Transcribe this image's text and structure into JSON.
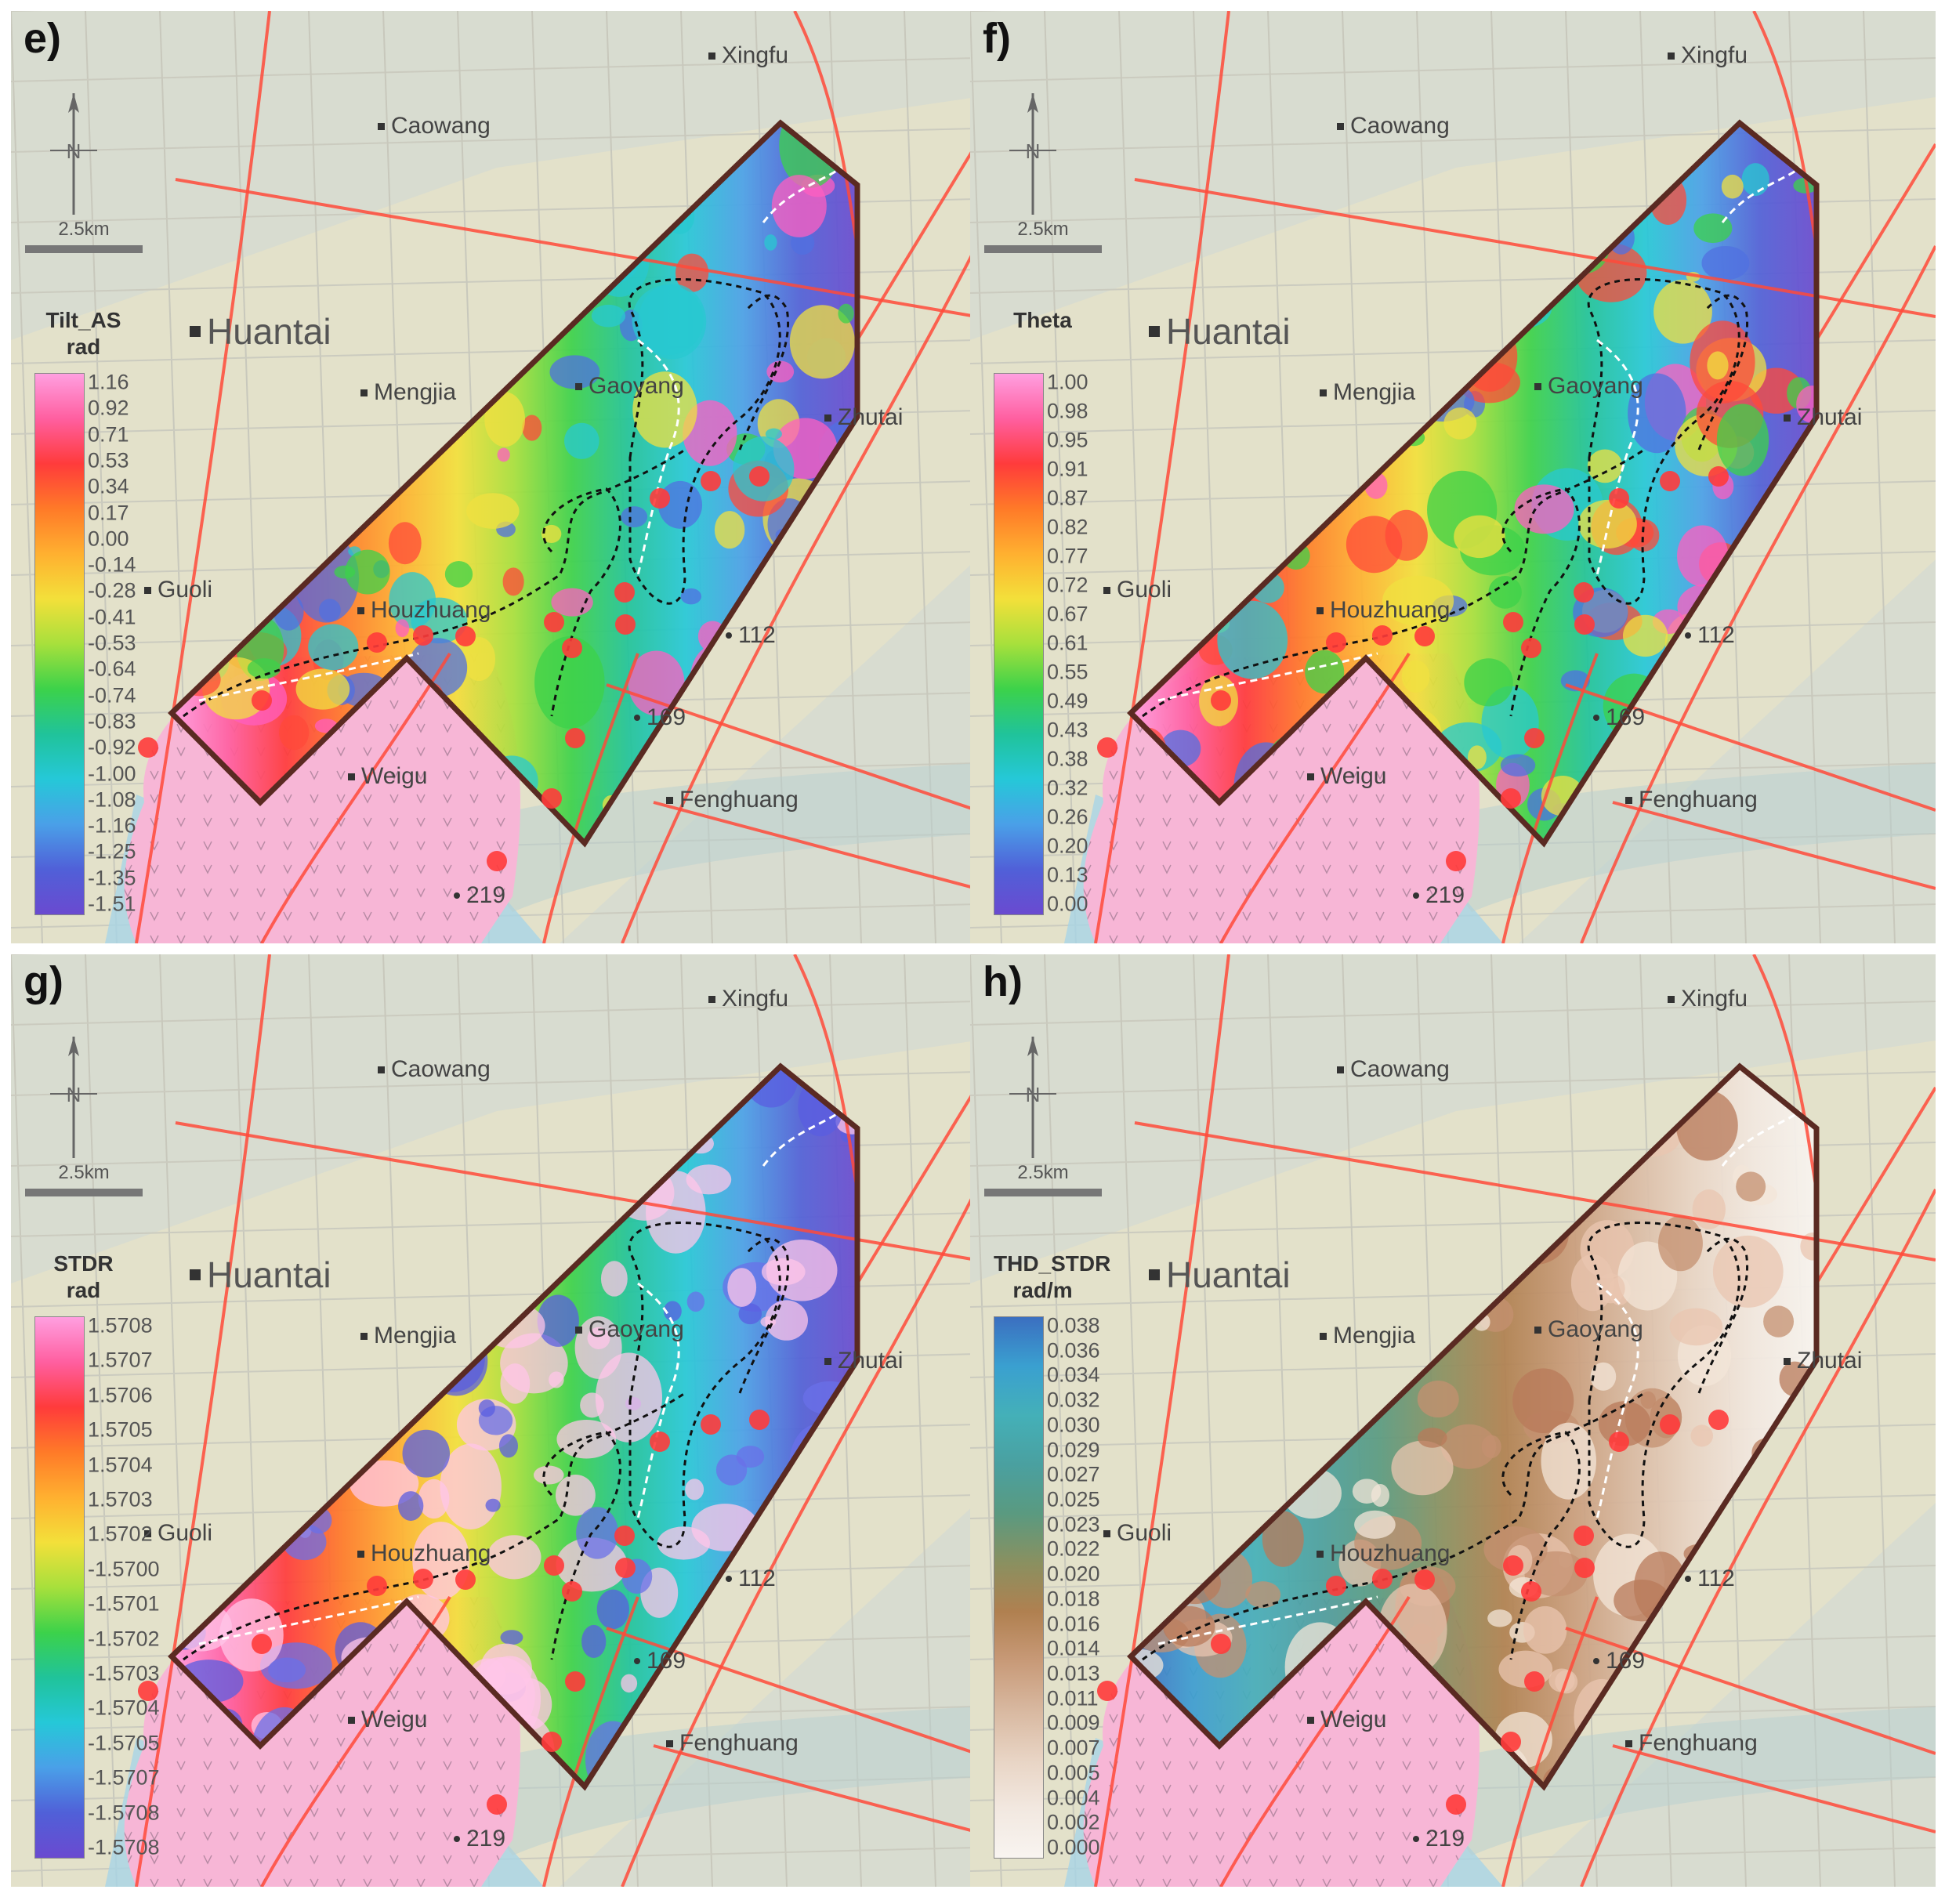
{
  "panels": [
    {
      "label": "e)",
      "legend_title": [
        "Tilt_AS",
        "rad"
      ],
      "ticks": [
        "1.16",
        "0.92",
        "0.71",
        "0.53",
        "0.34",
        "0.17",
        "0.00",
        "-0.14",
        "-0.28",
        "-0.41",
        "-0.53",
        "-0.64",
        "-0.74",
        "-0.83",
        "-0.92",
        "-1.00",
        "-1.08",
        "-1.16",
        "-1.25",
        "-1.35",
        "-1.51"
      ],
      "scheme": "rainbow"
    },
    {
      "label": "f)",
      "legend_title": [
        "Theta"
      ],
      "ticks": [
        "1.00",
        "0.98",
        "0.95",
        "0.91",
        "0.87",
        "0.82",
        "0.77",
        "0.72",
        "0.67",
        "0.61",
        "0.55",
        "0.49",
        "0.43",
        "0.38",
        "0.32",
        "0.26",
        "0.20",
        "0.13",
        "0.00"
      ],
      "scheme": "rainbow"
    },
    {
      "label": "g)",
      "legend_title": [
        "STDR",
        "rad"
      ],
      "ticks": [
        "1.5708",
        "1.5707",
        "1.5706",
        "1.5705",
        "1.5704",
        "1.5703",
        "1.5702",
        "-1.5700",
        "-1.5701",
        "-1.5702",
        "-1.5703",
        "-1.5704",
        "-1.5705",
        "-1.5707",
        "-1.5708",
        "-1.5708"
      ],
      "scheme": "rainbow"
    },
    {
      "label": "h)",
      "legend_title": [
        "THD_STDR",
        "rad/m"
      ],
      "ticks": [
        "0.038",
        "0.036",
        "0.034",
        "0.032",
        "0.030",
        "0.029",
        "0.027",
        "0.025",
        "0.023",
        "0.022",
        "0.020",
        "0.018",
        "0.016",
        "0.014",
        "0.013",
        "0.011",
        "0.009",
        "0.007",
        "0.005",
        "0.004",
        "0.002",
        "0.000"
      ],
      "scheme": "earth"
    }
  ],
  "towns": {
    "xingfu": "Xingfu",
    "caowang": "Caowang",
    "huantai": "Huantai",
    "mengjia": "Mengjia",
    "zhutai": "Zhutai",
    "guoli": "Guoli",
    "weigu": "Weigu",
    "fenghuang": "Fenghuang",
    "gaoyang": "Gaoyang",
    "houzhuang": "Houzhuang",
    "road": "219",
    "well": "112",
    "well2": "169"
  },
  "scale_label": "2.5km",
  "north_label": "N",
  "colors": {
    "boundary": "#5a2a22",
    "fault": "#ff4a3a",
    "well": "#ff3b3b",
    "intrusion": "#f7b6d6"
  }
}
